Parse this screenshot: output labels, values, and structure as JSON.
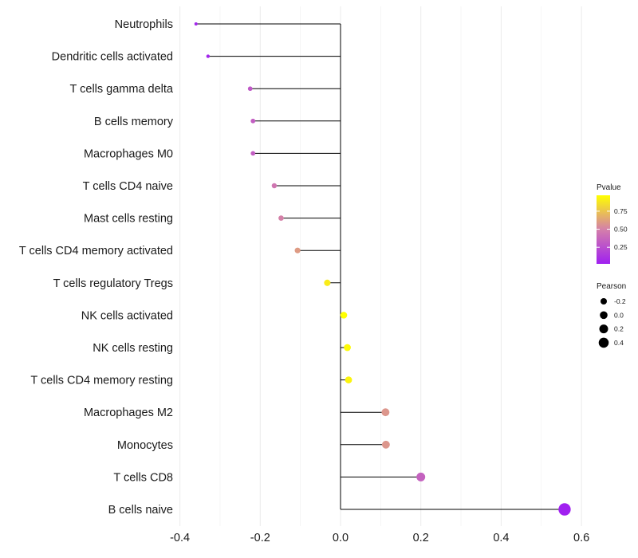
{
  "chart_data": {
    "type": "lollipop",
    "title": "",
    "xlabel": "",
    "ylabel": "",
    "xlim": [
      -0.42,
      0.64
    ],
    "x_ticks": [
      -0.4,
      -0.2,
      0.0,
      0.2,
      0.4,
      0.6
    ],
    "x_tick_labels": [
      "-0.4",
      "-0.2",
      "0.0",
      "0.2",
      "0.4",
      "0.6"
    ],
    "grid": true,
    "categories": [
      "Neutrophils",
      "Dendritic cells activated",
      "T cells gamma delta",
      "B cells memory",
      "Macrophages M0",
      "T cells CD4 naive",
      "Mast cells resting",
      "T cells CD4 memory activated",
      "T cells regulatory  Tregs",
      "NK cells activated",
      "NK cells resting",
      "T cells CD4 memory resting",
      "Macrophages M2",
      "Monocytes",
      "T cells CD8",
      "B cells naive"
    ],
    "pearson": [
      -0.36,
      -0.33,
      -0.225,
      -0.218,
      -0.218,
      -0.165,
      -0.148,
      -0.107,
      -0.033,
      0.008,
      0.017,
      0.02,
      0.112,
      0.113,
      0.2,
      0.558
    ],
    "pvalue": [
      0.05,
      0.05,
      0.3,
      0.33,
      0.33,
      0.45,
      0.5,
      0.6,
      0.9,
      0.97,
      0.95,
      0.93,
      0.58,
      0.58,
      0.35,
      0.02
    ],
    "legend_color": {
      "title": "Pvalue",
      "breaks": [
        0.25,
        0.5,
        0.75
      ],
      "break_labels": [
        "0.25",
        "0.50",
        "0.75"
      ],
      "range": [
        0.02,
        0.97
      ],
      "low_color": "#a020f0",
      "mid_color": "#d47faa",
      "high_color": "#ffff00"
    },
    "legend_size": {
      "title": "Pearson",
      "breaks": [
        -0.2,
        0.0,
        0.2,
        0.4
      ],
      "break_labels": [
        "-0.2",
        "0.0",
        "0.2",
        "0.4"
      ]
    }
  }
}
